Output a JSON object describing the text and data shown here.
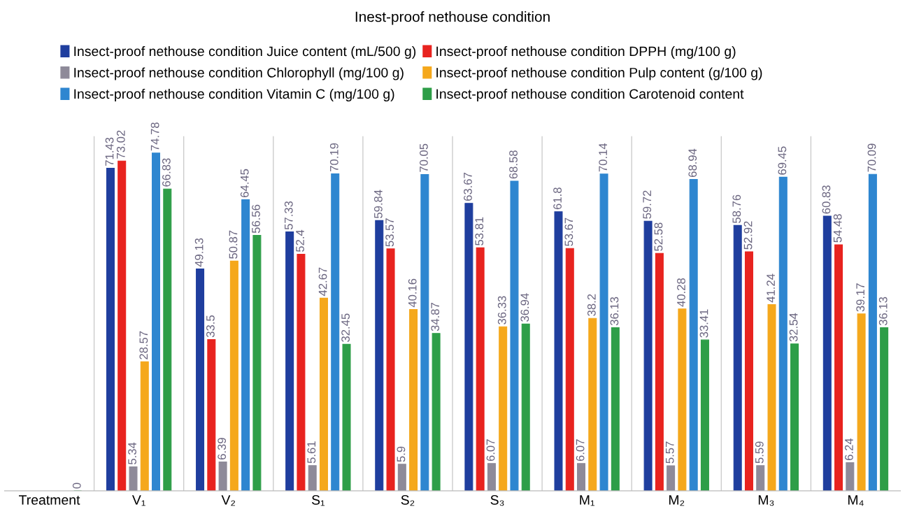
{
  "chart_data": {
    "type": "bar",
    "title": "Inest-proof nethouse condition",
    "categories": [
      "Treatment",
      "V₁",
      "V₂",
      "S₁",
      "S₂",
      "S₃",
      "M₁",
      "M₂",
      "M₃",
      "M₄"
    ],
    "series": [
      {
        "name": "Insect-proof nethouse condition Juice content (mL/500 g)",
        "color": "#1f3e9e",
        "values": [
          null,
          71.43,
          49.13,
          57.33,
          59.84,
          63.67,
          61.8,
          59.72,
          58.76,
          60.83
        ]
      },
      {
        "name": "Insect-proof nethouse condition DPPH (mg/100 g)",
        "color": "#e8231f",
        "values": [
          null,
          73.02,
          33.5,
          52.4,
          53.57,
          53.81,
          53.67,
          52.58,
          52.92,
          54.48
        ]
      },
      {
        "name": "Insect-proof nethouse condition Chlorophyll (mg/100 g)",
        "color": "#8e8a99",
        "values": [
          null,
          5.34,
          6.39,
          5.61,
          5.9,
          6.07,
          6.07,
          5.57,
          5.59,
          6.24
        ]
      },
      {
        "name": "Insect-proof nethouse condition Pulp content (g/100 g)",
        "color": "#f5a81c",
        "values": [
          null,
          28.57,
          50.87,
          42.67,
          40.16,
          36.33,
          38.2,
          40.28,
          41.24,
          39.17
        ]
      },
      {
        "name": "Insect-proof nethouse condition Vitamin C (mg/100 g)",
        "color": "#2e86d0",
        "values": [
          null,
          74.78,
          64.45,
          70.19,
          70.05,
          68.58,
          70.14,
          68.94,
          69.45,
          70.09
        ]
      },
      {
        "name": "Insect-proof nethouse condition Carotenoid content",
        "color": "#2e9e48",
        "values": [
          0,
          66.83,
          56.56,
          32.45,
          34.87,
          36.94,
          36.13,
          33.41,
          32.54,
          36.13
        ]
      }
    ],
    "data_labels": true,
    "legend": "top",
    "grid": "x"
  }
}
